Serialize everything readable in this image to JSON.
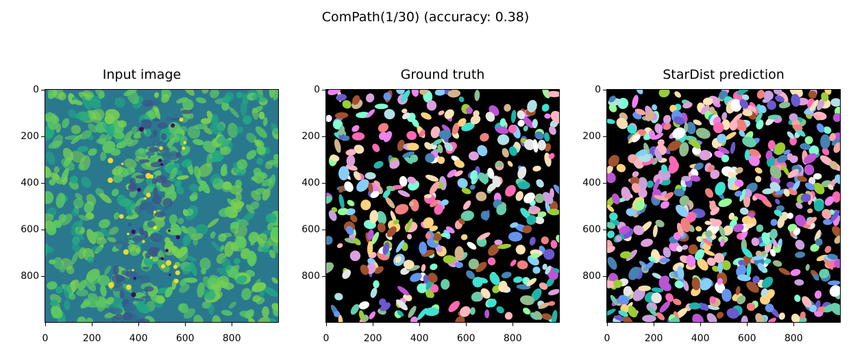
{
  "figure": {
    "title": "ComPath(1/30) (accuracy: 0.38)"
  },
  "panels": [
    {
      "title": "Input image"
    },
    {
      "title": "Ground truth"
    },
    {
      "title": "StarDist prediction"
    }
  ],
  "axes": {
    "x_ticks": [
      "0",
      "200",
      "400",
      "600",
      "800"
    ],
    "y_ticks": [
      "0",
      "200",
      "400",
      "600",
      "800"
    ],
    "range": [
      0,
      999
    ]
  },
  "colors": {
    "viridis_dark": "#3b528b",
    "viridis_mid": "#21918c",
    "viridis_light": "#5ec962",
    "viridis_bright": "#fde725",
    "label_background": "#000000"
  }
}
